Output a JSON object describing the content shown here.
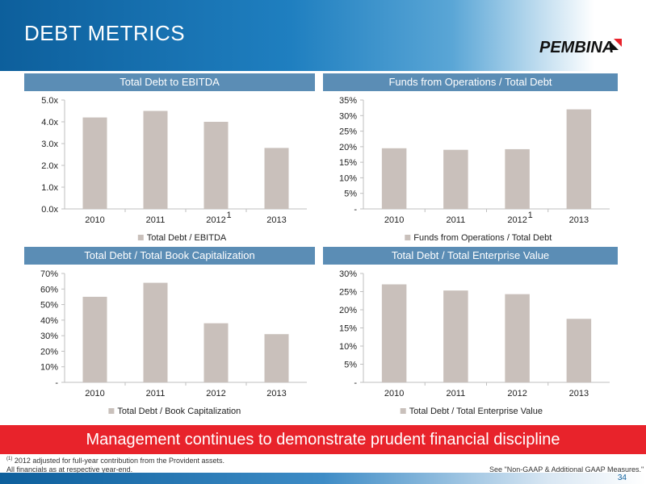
{
  "slide": {
    "title": "DEBT METRICS",
    "logo_text": "PEMBINA",
    "banner": "Management continues to demonstrate prudent financial discipline",
    "footnote_marker": "(1)",
    "footnote_1": "2012 adjusted for full-year contribution from the Provident assets.",
    "footnote_2": "All financials as at respective year-end.",
    "see_note": "See \"Non-GAAP & Additional GAAP Measures.\"",
    "page_number": "34"
  },
  "colors": {
    "bar": "#c9c0bb",
    "header_blue": "#0d5f9c",
    "panel_header": "#5b8db5",
    "banner_red": "#e8232b"
  },
  "chart_data": [
    {
      "id": "debt-ebitda",
      "type": "bar",
      "title": "Total Debt to EBITDA",
      "categories": [
        "2010",
        "2011",
        "2012",
        "2013"
      ],
      "category_superscripts": [
        "",
        "",
        "1",
        ""
      ],
      "series": [
        {
          "name": "Total Debt / EBITDA",
          "values": [
            4.2,
            4.5,
            4.0,
            2.8
          ]
        }
      ],
      "ylim": [
        0,
        5
      ],
      "yticks": [
        0,
        1,
        2,
        3,
        4,
        5
      ],
      "yticklabels": [
        "0.0x",
        "1.0x",
        "2.0x",
        "3.0x",
        "4.0x",
        "5.0x"
      ],
      "legend": "bottom"
    },
    {
      "id": "ffo-debt",
      "type": "bar",
      "title": "Funds from Operations / Total Debt",
      "categories": [
        "2010",
        "2011",
        "2012",
        "2013"
      ],
      "category_superscripts": [
        "",
        "",
        "1",
        ""
      ],
      "series": [
        {
          "name": "Funds from Operations / Total Debt",
          "values": [
            19.5,
            19,
            19.2,
            32
          ]
        }
      ],
      "ylim": [
        0,
        35
      ],
      "yticks": [
        0,
        5,
        10,
        15,
        20,
        25,
        30,
        35
      ],
      "yticklabels": [
        "-",
        "5%",
        "10%",
        "15%",
        "20%",
        "25%",
        "30%",
        "35%"
      ],
      "legend": "bottom"
    },
    {
      "id": "debt-book-cap",
      "type": "bar",
      "title": "Total Debt / Total Book Capitalization",
      "categories": [
        "2010",
        "2011",
        "2012",
        "2013"
      ],
      "category_superscripts": [
        "",
        "",
        "",
        ""
      ],
      "series": [
        {
          "name": "Total Debt / Book Capitalization",
          "values": [
            55,
            64,
            38,
            31
          ]
        }
      ],
      "ylim": [
        0,
        70
      ],
      "yticks": [
        0,
        10,
        20,
        30,
        40,
        50,
        60,
        70
      ],
      "yticklabels": [
        "-",
        "10%",
        "20%",
        "30%",
        "40%",
        "50%",
        "60%",
        "70%"
      ],
      "legend": "bottom"
    },
    {
      "id": "debt-ev",
      "type": "bar",
      "title": "Total Debt / Total Enterprise Value",
      "categories": [
        "2010",
        "2011",
        "2012",
        "2013"
      ],
      "category_superscripts": [
        "",
        "",
        "",
        ""
      ],
      "series": [
        {
          "name": "Total Debt /  Total Enterprise Value",
          "values": [
            27,
            25.3,
            24.3,
            17.5
          ]
        }
      ],
      "ylim": [
        0,
        30
      ],
      "yticks": [
        0,
        5,
        10,
        15,
        20,
        25,
        30
      ],
      "yticklabels": [
        "-",
        "5%",
        "10%",
        "15%",
        "20%",
        "25%",
        "30%"
      ],
      "legend": "bottom"
    }
  ]
}
